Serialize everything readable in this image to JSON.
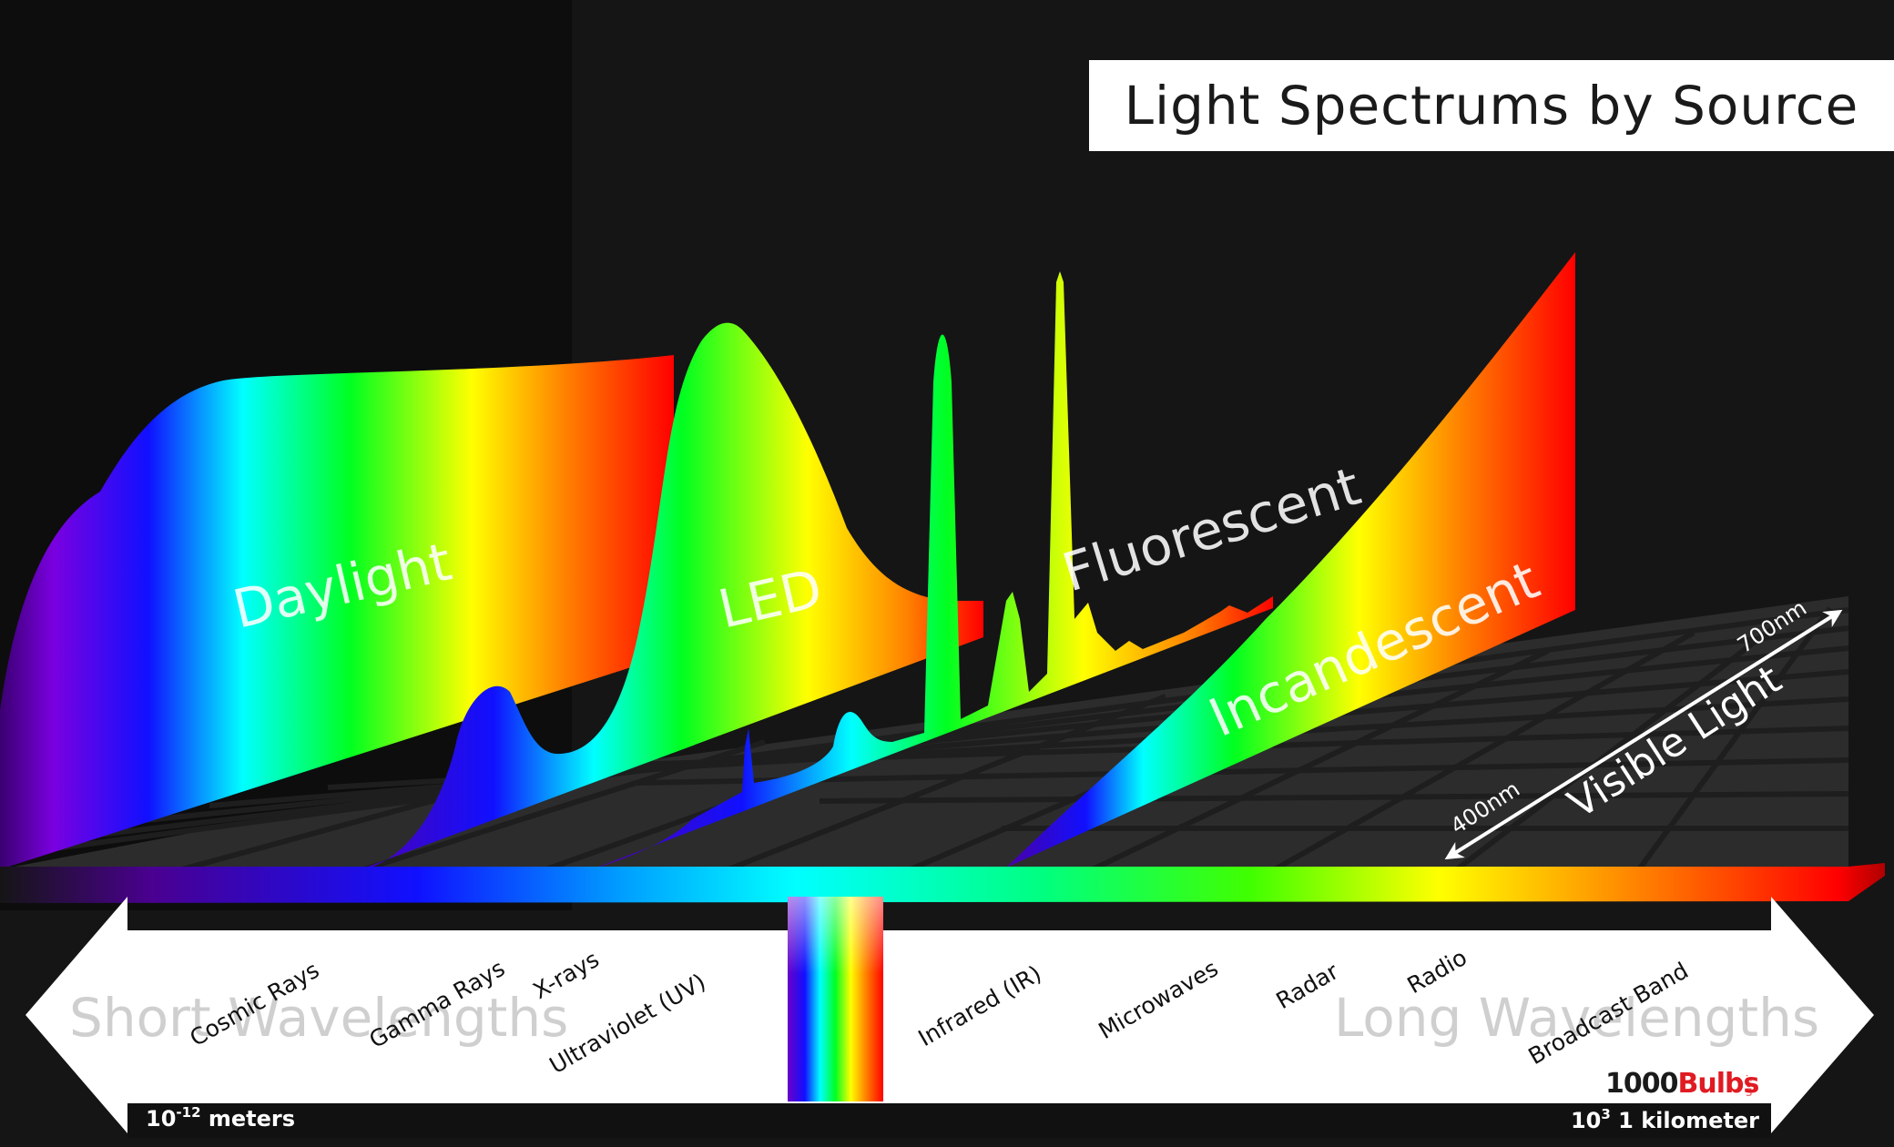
{
  "title": "Light Spectrums by Source",
  "spectra": {
    "daylight": "Daylight",
    "led": "LED",
    "fluorescent": "Fluorescent",
    "incandescent": "Incandescent"
  },
  "visible_light": {
    "label": "Visible Light",
    "start": "400nm",
    "end": "700nm"
  },
  "bands": [
    "Cosmic Rays",
    "Gamma Rays",
    "X-rays",
    "Ultraviolet (UV)",
    "Infrared (IR)",
    "Microwaves",
    "Radar",
    "Radio",
    "Broadcast Band"
  ],
  "short_label": "Short Wavelengths",
  "long_label": "Long Wavelengths",
  "scale": {
    "left_base": "10",
    "left_exp": "-12",
    "left_unit": " meters",
    "right_base": "10",
    "right_exp": "3",
    "right_unit": " 1 kilometer"
  },
  "logo": {
    "main": "1000Bulbs",
    "suffix": ".com"
  },
  "colors": {
    "violet": "#6a00c8",
    "blue": "#1010ff",
    "cyan": "#00ffff",
    "green": "#00ff20",
    "yellow": "#ffff00",
    "orange": "#ff8000",
    "red": "#ff0000",
    "logo_black": "#1a1a1a",
    "logo_red": "#e01b22"
  }
}
